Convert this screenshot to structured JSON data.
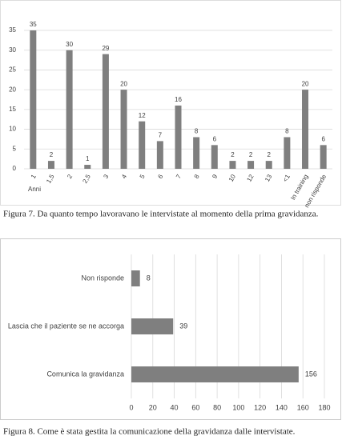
{
  "chart_data": [
    {
      "type": "bar",
      "categories": [
        "1",
        "1,5",
        "2",
        "2,5",
        "3",
        "4",
        "5",
        "6",
        "7",
        "8",
        "9",
        "10",
        "12",
        "13",
        "<1",
        "In training",
        "non risponde"
      ],
      "values": [
        35,
        2,
        30,
        1,
        29,
        20,
        12,
        7,
        16,
        8,
        6,
        2,
        2,
        2,
        8,
        20,
        6
      ],
      "color": "#7f7f7f",
      "x_label": "Anni",
      "ylim": [
        0,
        35
      ],
      "yticks": [
        0,
        5,
        10,
        15,
        20,
        25,
        30,
        35
      ],
      "grid": true,
      "caption": "Figura 7. Da quanto tempo lavoravano le intervistate al momento della prima gravidanza."
    },
    {
      "type": "barh",
      "categories": [
        "Non risponde",
        "Lascia che il paziente se ne accorga",
        "Comunica la gravidanza"
      ],
      "values": [
        8,
        39,
        156
      ],
      "color": "#7f7f7f",
      "xlim": [
        0,
        180
      ],
      "xticks": [
        0,
        20,
        40,
        60,
        80,
        100,
        120,
        140,
        160,
        180
      ],
      "grid": true,
      "caption": "Figura 8. Come è stata gestita la comunicazione della gravidanza dalle intervistate."
    }
  ]
}
